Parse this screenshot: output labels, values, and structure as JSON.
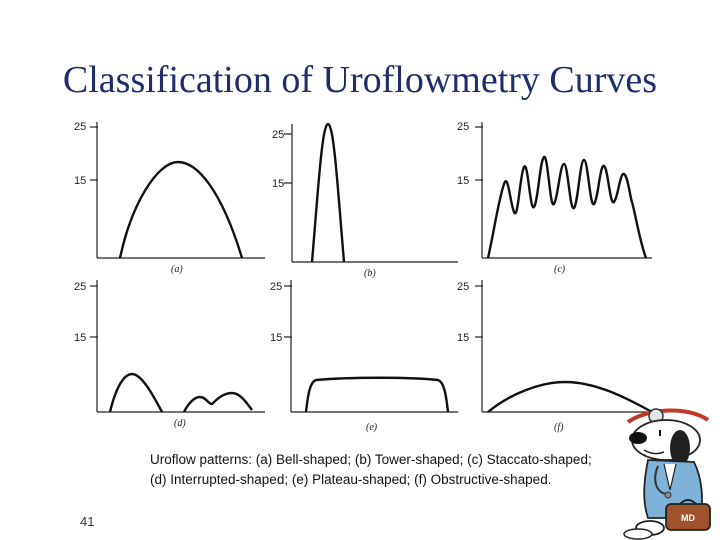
{
  "slide": {
    "title": "Classification of Uroflowmetry Curves",
    "number": "41"
  },
  "caption": {
    "line1": "Uroflow patterns: (a) Bell-shaped; (b) Tower-shaped; (c) Staccato-shaped;",
    "line2": "(d) Interrupted-shaped; (e) Plateau-shaped; (f) Obstructive-shaped."
  },
  "panels": [
    {
      "id": "a",
      "label": "(a)",
      "y_ticks": [
        "25",
        "15"
      ],
      "shape": "bell"
    },
    {
      "id": "b",
      "label": "(b)",
      "y_ticks": [
        "25",
        "15"
      ],
      "shape": "tower"
    },
    {
      "id": "c",
      "label": "(c)",
      "y_ticks": [
        "25",
        "15"
      ],
      "shape": "staccato"
    },
    {
      "id": "d",
      "label": "(d)",
      "y_ticks": [
        "25",
        "15"
      ],
      "shape": "interrupted"
    },
    {
      "id": "e",
      "label": "(e)",
      "y_ticks": [
        "25",
        "15"
      ],
      "shape": "plateau"
    },
    {
      "id": "f",
      "label": "(f)",
      "y_ticks": [
        "25",
        "15"
      ],
      "shape": "obstructive"
    }
  ],
  "mascot": {
    "badge_text": "MD",
    "icon": "snoopy-doctor-illustration"
  },
  "colors": {
    "title": "#1f2d6b",
    "curve": "#111111",
    "mascot_accent": "#c0392b"
  }
}
